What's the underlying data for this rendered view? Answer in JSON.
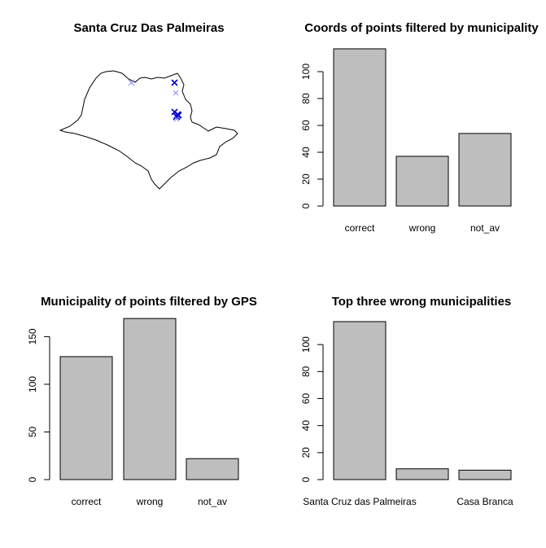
{
  "map_panel": {
    "title": "Santa Cruz Das Palmeiras",
    "boundary_color": "#000000",
    "point_color_dense": "#0000cc",
    "point_color_light": "#8888ff"
  },
  "chart_data": [
    {
      "type": "bar",
      "title": "Coords of points filtered by municipality",
      "categories": [
        "correct",
        "wrong",
        "not_av"
      ],
      "values": [
        117,
        37,
        54
      ],
      "ylim": [
        0,
        120
      ],
      "yticks": [
        0,
        20,
        40,
        60,
        80,
        100
      ],
      "bar_color": "#bebebe"
    },
    {
      "type": "bar",
      "title": "Municipality of points filtered by GPS",
      "categories": [
        "correct",
        "wrong",
        "not_av"
      ],
      "values": [
        129,
        169,
        22
      ],
      "ylim": [
        0,
        170
      ],
      "yticks": [
        0,
        50,
        100,
        150
      ],
      "bar_color": "#bebebe"
    },
    {
      "type": "bar",
      "title": "Top three wrong municipalities",
      "categories": [
        "Santa Cruz das Palmeiras",
        "",
        "Casa Branca"
      ],
      "values": [
        117,
        8,
        7
      ],
      "ylim": [
        0,
        120
      ],
      "yticks": [
        0,
        20,
        40,
        60,
        80,
        100
      ],
      "bar_color": "#bebebe"
    }
  ]
}
